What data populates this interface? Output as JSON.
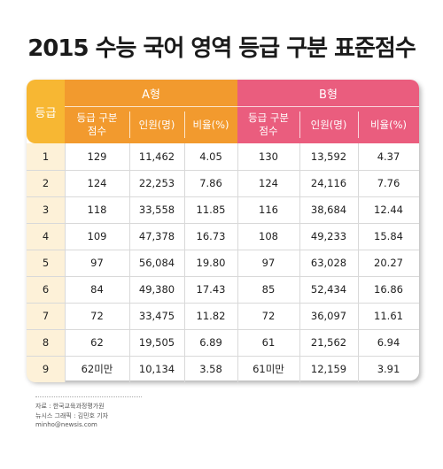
{
  "title": "2015 수능 국어 영역 등급 구분 표준점수",
  "colors": {
    "grade_header": "#f7b733",
    "type_a": "#f29a2e",
    "type_b": "#ea5d7e",
    "grade_column": "#fdf1d8"
  },
  "chart_data": {
    "type": "table",
    "title": "2015 수능 국어 영역 등급 구분 표준점수",
    "header": {
      "grade": "등급",
      "type_a": "A형",
      "type_b": "B형",
      "cut_line1": "등급 구분",
      "cut_line2": "점수",
      "count": "인원(명)",
      "ratio": "비율(%)"
    },
    "rows": [
      {
        "grade": "1",
        "a_cut": "129",
        "a_count": "11,462",
        "a_ratio": "4.05",
        "b_cut": "130",
        "b_count": "13,592",
        "b_ratio": "4.37"
      },
      {
        "grade": "2",
        "a_cut": "124",
        "a_count": "22,253",
        "a_ratio": "7.86",
        "b_cut": "124",
        "b_count": "24,116",
        "b_ratio": "7.76"
      },
      {
        "grade": "3",
        "a_cut": "118",
        "a_count": "33,558",
        "a_ratio": "11.85",
        "b_cut": "116",
        "b_count": "38,684",
        "b_ratio": "12.44"
      },
      {
        "grade": "4",
        "a_cut": "109",
        "a_count": "47,378",
        "a_ratio": "16.73",
        "b_cut": "108",
        "b_count": "49,233",
        "b_ratio": "15.84"
      },
      {
        "grade": "5",
        "a_cut": "97",
        "a_count": "56,084",
        "a_ratio": "19.80",
        "b_cut": "97",
        "b_count": "63,028",
        "b_ratio": "20.27"
      },
      {
        "grade": "6",
        "a_cut": "84",
        "a_count": "49,380",
        "a_ratio": "17.43",
        "b_cut": "85",
        "b_count": "52,434",
        "b_ratio": "16.86"
      },
      {
        "grade": "7",
        "a_cut": "72",
        "a_count": "33,475",
        "a_ratio": "11.82",
        "b_cut": "72",
        "b_count": "36,097",
        "b_ratio": "11.61"
      },
      {
        "grade": "8",
        "a_cut": "62",
        "a_count": "19,505",
        "a_ratio": "6.89",
        "b_cut": "61",
        "b_count": "21,562",
        "b_ratio": "6.94"
      },
      {
        "grade": "9",
        "a_cut": "62미만",
        "a_count": "10,134",
        "a_ratio": "3.58",
        "b_cut": "61미만",
        "b_count": "12,159",
        "b_ratio": "3.91"
      }
    ]
  },
  "footer": {
    "source": "자료 : 한국교육과정평가원",
    "graphic": "뉴시스 그래픽 : 김민호 기자",
    "email": "minho@newsis.com"
  }
}
